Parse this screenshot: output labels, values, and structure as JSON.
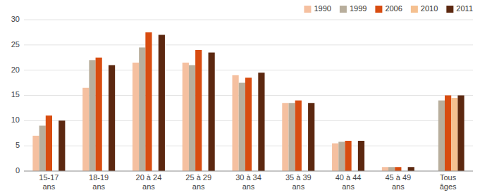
{
  "chart_data": {
    "type": "bar",
    "categories": [
      "15-17\nans",
      "18-19\nans",
      "20 à 24\nans",
      "25 à 29\nans",
      "30 à 34\nans",
      "35 à 39\nans",
      "40 à 44\nans",
      "45 à 49\nans",
      "Tous\nâges"
    ],
    "series": [
      {
        "name": "1990",
        "color": "#F5C0A0",
        "values": [
          7.0,
          16.5,
          21.5,
          21.5,
          19.0,
          13.5,
          5.5,
          0.8,
          null
        ]
      },
      {
        "name": "1999",
        "color": "#B8AE9C",
        "values": [
          9.0,
          22.0,
          24.5,
          21.0,
          17.5,
          13.5,
          5.8,
          0.8,
          14.0
        ]
      },
      {
        "name": "2006",
        "color": "#D84C10",
        "values": [
          11.0,
          22.5,
          27.5,
          24.0,
          18.5,
          14.0,
          6.0,
          0.8,
          15.0
        ]
      },
      {
        "name": "2010",
        "color": "#F5C090",
        "values": [
          null,
          null,
          null,
          null,
          null,
          null,
          null,
          null,
          14.5
        ]
      },
      {
        "name": "2011",
        "color": "#5C2810",
        "values": [
          10.0,
          21.0,
          27.0,
          23.5,
          19.5,
          13.5,
          6.0,
          0.8,
          15.0
        ]
      }
    ],
    "ylim": [
      0,
      30
    ],
    "yticks": [
      0,
      5,
      10,
      15,
      20,
      25,
      30
    ],
    "grid": true,
    "legend": "upper right"
  }
}
